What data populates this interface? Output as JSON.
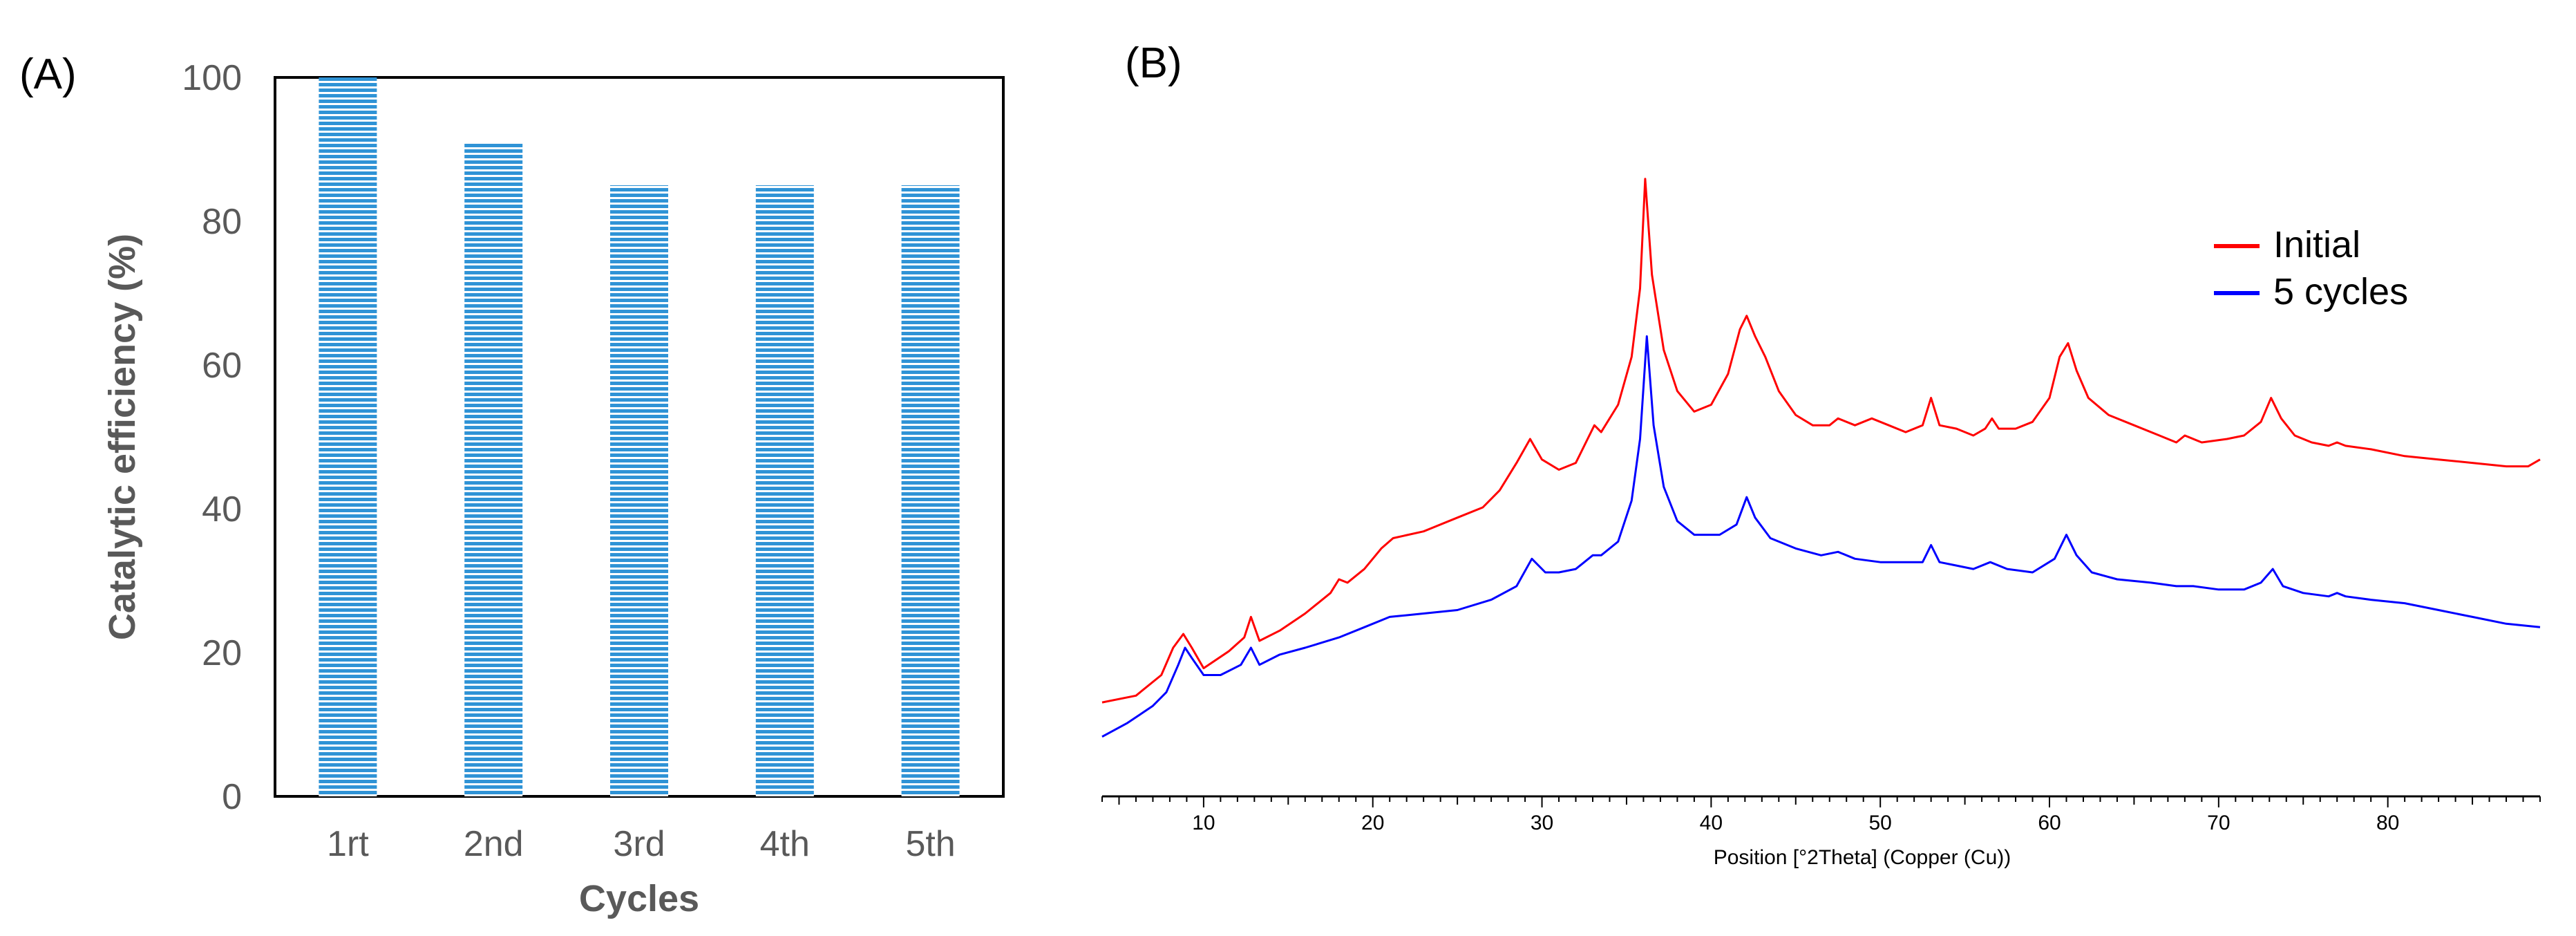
{
  "panels": {
    "a_label": "(A)",
    "b_label": "(B)"
  },
  "chart_data": [
    {
      "id": "A",
      "type": "bar",
      "title": "",
      "categories": [
        "1rt",
        "2nd",
        "3rd",
        "4th",
        "5th"
      ],
      "values": [
        100,
        91,
        85,
        85,
        85
      ],
      "xlabel": "Cycles",
      "ylabel": "Catalytic efficiency (%)",
      "ylim": [
        0,
        100
      ],
      "yticks": [
        0,
        20,
        40,
        60,
        80,
        100
      ],
      "grid": false,
      "bar_color": "#2f93d6",
      "bar_pattern": "horizontal-lines"
    },
    {
      "id": "B",
      "type": "line",
      "title": "",
      "xlabel": "Position [°2Theta] (Copper (Cu))",
      "ylabel": "",
      "xlim": [
        4,
        89
      ],
      "ylim": [
        0,
        100
      ],
      "xticks": [
        10,
        20,
        30,
        40,
        50,
        60,
        70,
        80
      ],
      "legend_position": "top-right",
      "grid": false,
      "series": [
        {
          "name": "Initial",
          "color": "#ff0000",
          "x": [
            4.0,
            6.0,
            7.5,
            8.2,
            8.8,
            9.3,
            10.0,
            11.5,
            12.4,
            12.8,
            13.3,
            14.5,
            16.0,
            17.5,
            18.0,
            18.5,
            19.5,
            20.5,
            21.2,
            23.0,
            25.0,
            26.5,
            27.5,
            28.5,
            29.3,
            30.0,
            31.0,
            32.0,
            32.7,
            33.1,
            33.5,
            34.5,
            35.3,
            35.8,
            36.1,
            36.5,
            37.2,
            38.0,
            39.0,
            40.0,
            41.0,
            41.7,
            42.1,
            42.6,
            43.2,
            44.0,
            45.0,
            46.0,
            47.0,
            47.5,
            48.5,
            49.5,
            50.5,
            51.5,
            52.5,
            53.0,
            53.5,
            54.5,
            55.5,
            56.2,
            56.6,
            57.0,
            58.0,
            59.0,
            60.0,
            60.6,
            61.1,
            61.6,
            62.3,
            63.5,
            65.0,
            66.5,
            67.5,
            68.0,
            69.0,
            70.5,
            71.5,
            72.5,
            73.1,
            73.7,
            74.5,
            75.5,
            76.5,
            77.0,
            77.5,
            79.0,
            81.0,
            83.0,
            85.0,
            87.0,
            88.3,
            89.0
          ],
          "y": [
            11.5,
            12.5,
            15.5,
            19.5,
            21.5,
            19.5,
            16.5,
            19.0,
            21.0,
            24.0,
            20.5,
            22.0,
            24.5,
            27.5,
            29.5,
            29.0,
            31.0,
            34.0,
            35.5,
            36.5,
            38.5,
            40.0,
            42.5,
            46.5,
            50.0,
            47.0,
            45.5,
            46.5,
            50.0,
            52.0,
            51.0,
            55.0,
            62.0,
            72.0,
            88.0,
            74.0,
            63.0,
            57.0,
            54.0,
            55.0,
            59.5,
            66.0,
            68.0,
            65.0,
            62.0,
            57.0,
            53.5,
            52.0,
            52.0,
            53.0,
            52.0,
            53.0,
            52.0,
            51.0,
            52.0,
            56.0,
            52.0,
            51.5,
            50.5,
            51.5,
            53.0,
            51.5,
            51.5,
            52.5,
            56.0,
            62.0,
            64.0,
            60.0,
            56.0,
            53.5,
            52.0,
            50.5,
            49.5,
            50.5,
            49.5,
            50.0,
            50.5,
            52.5,
            56.0,
            53.0,
            50.5,
            49.5,
            49.0,
            49.5,
            49.0,
            48.5,
            47.5,
            47.0,
            46.5,
            46.0,
            46.0,
            47.0
          ]
        },
        {
          "name": "5 cycles",
          "color": "#0000ff",
          "x": [
            4.0,
            5.5,
            7.0,
            7.8,
            8.5,
            8.9,
            9.3,
            10.0,
            11.0,
            12.2,
            12.8,
            13.3,
            14.5,
            16.0,
            18.0,
            19.5,
            21.0,
            23.0,
            25.0,
            27.0,
            28.5,
            29.4,
            30.2,
            31.0,
            32.0,
            33.0,
            33.5,
            34.5,
            35.3,
            35.8,
            36.2,
            36.6,
            37.2,
            38.0,
            39.0,
            40.5,
            41.5,
            42.1,
            42.6,
            43.5,
            45.0,
            46.5,
            47.5,
            48.5,
            50.0,
            51.5,
            52.5,
            53.0,
            53.5,
            54.5,
            55.5,
            56.5,
            57.5,
            59.0,
            60.3,
            61.0,
            61.6,
            62.5,
            64.0,
            66.0,
            67.5,
            68.5,
            70.0,
            71.5,
            72.5,
            73.2,
            73.8,
            75.0,
            76.5,
            77.0,
            77.5,
            79.0,
            81.0,
            83.0,
            85.0,
            87.0,
            89.0
          ],
          "y": [
            6.5,
            8.5,
            11.0,
            13.0,
            17.0,
            19.5,
            18.0,
            15.5,
            15.5,
            17.0,
            19.5,
            17.0,
            18.5,
            19.5,
            21.0,
            22.5,
            24.0,
            24.5,
            25.0,
            26.5,
            28.5,
            32.5,
            30.5,
            30.5,
            31.0,
            33.0,
            33.0,
            35.0,
            41.0,
            50.0,
            65.0,
            52.0,
            43.0,
            38.0,
            36.0,
            36.0,
            37.5,
            41.5,
            38.5,
            35.5,
            34.0,
            33.0,
            33.5,
            32.5,
            32.0,
            32.0,
            32.0,
            34.5,
            32.0,
            31.5,
            31.0,
            32.0,
            31.0,
            30.5,
            32.5,
            36.0,
            33.0,
            30.5,
            29.5,
            29.0,
            28.5,
            28.5,
            28.0,
            28.0,
            29.0,
            31.0,
            28.5,
            27.5,
            27.0,
            27.5,
            27.0,
            26.5,
            26.0,
            25.0,
            24.0,
            23.0,
            22.5
          ]
        }
      ]
    }
  ]
}
